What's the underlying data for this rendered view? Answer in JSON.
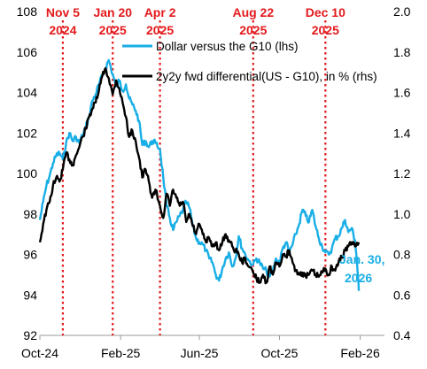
{
  "chart_data": {
    "type": "line",
    "title": "",
    "xlabel": "",
    "x_ticks": [
      "Oct-24",
      "Feb-25",
      "Jun-25",
      "Oct-25",
      "Feb-26"
    ],
    "y_left": {
      "ylim": [
        92,
        108
      ],
      "ticks": [
        "92",
        "94",
        "96",
        "98",
        "100",
        "102",
        "104",
        "106",
        "108"
      ]
    },
    "y_right": {
      "ylim": [
        0.4,
        2.0
      ],
      "ticks": [
        "0.4",
        "0.6",
        "0.8",
        "1.0",
        "1.2",
        "1.4",
        "1.6",
        "1.8",
        "2.0"
      ]
    },
    "x_range": [
      "2024-10-01",
      "2026-03-10"
    ],
    "grid": false,
    "legend_position": "top-center",
    "series": [
      {
        "name": "Dollar versus the G10 (lhs)",
        "axis": "left",
        "color": "#18aee6",
        "points": [
          [
            "2024-10-01",
            97.7
          ],
          [
            "2024-10-06",
            98.6
          ],
          [
            "2024-10-11",
            99.4
          ],
          [
            "2024-10-16",
            99.9
          ],
          [
            "2024-10-21",
            100.5
          ],
          [
            "2024-10-26",
            100.9
          ],
          [
            "2024-10-31",
            101.0
          ],
          [
            "2024-11-05",
            100.7
          ],
          [
            "2024-11-10",
            101.5
          ],
          [
            "2024-11-15",
            102.0
          ],
          [
            "2024-11-20",
            101.6
          ],
          [
            "2024-11-25",
            101.8
          ],
          [
            "2024-11-30",
            101.5
          ],
          [
            "2024-12-05",
            101.9
          ],
          [
            "2024-12-10",
            102.3
          ],
          [
            "2024-12-15",
            102.8
          ],
          [
            "2024-12-20",
            103.6
          ],
          [
            "2024-12-25",
            103.9
          ],
          [
            "2024-12-30",
            104.4
          ],
          [
            "2025-01-04",
            104.8
          ],
          [
            "2025-01-09",
            105.2
          ],
          [
            "2025-01-14",
            105.6
          ],
          [
            "2025-01-20",
            104.9
          ],
          [
            "2025-01-25",
            104.3
          ],
          [
            "2025-01-30",
            104.6
          ],
          [
            "2025-02-04",
            104.1
          ],
          [
            "2025-02-09",
            104.4
          ],
          [
            "2025-02-14",
            103.7
          ],
          [
            "2025-02-19",
            103.4
          ],
          [
            "2025-02-24",
            103.1
          ],
          [
            "2025-03-01",
            102.6
          ],
          [
            "2025-03-06",
            101.4
          ],
          [
            "2025-03-11",
            101.6
          ],
          [
            "2025-03-16",
            101.3
          ],
          [
            "2025-03-21",
            101.6
          ],
          [
            "2025-03-26",
            101.5
          ],
          [
            "2025-04-02",
            101.2
          ],
          [
            "2025-04-07",
            99.8
          ],
          [
            "2025-04-12",
            98.4
          ],
          [
            "2025-04-17",
            97.8
          ],
          [
            "2025-04-22",
            97.2
          ],
          [
            "2025-04-27",
            97.6
          ],
          [
            "2025-05-02",
            97.9
          ],
          [
            "2025-05-07",
            98.2
          ],
          [
            "2025-05-12",
            98.6
          ],
          [
            "2025-05-17",
            98.3
          ],
          [
            "2025-05-22",
            97.4
          ],
          [
            "2025-05-27",
            96.8
          ],
          [
            "2025-06-01",
            96.6
          ],
          [
            "2025-06-06",
            96.5
          ],
          [
            "2025-06-11",
            96.2
          ],
          [
            "2025-06-16",
            95.8
          ],
          [
            "2025-06-21",
            95.6
          ],
          [
            "2025-06-26",
            95.0
          ],
          [
            "2025-07-01",
            94.7
          ],
          [
            "2025-07-06",
            95.3
          ],
          [
            "2025-07-11",
            95.8
          ],
          [
            "2025-07-16",
            96.1
          ],
          [
            "2025-07-21",
            95.4
          ],
          [
            "2025-07-26",
            95.8
          ],
          [
            "2025-07-31",
            96.9
          ],
          [
            "2025-08-05",
            96.3
          ],
          [
            "2025-08-10",
            96.0
          ],
          [
            "2025-08-15",
            95.7
          ],
          [
            "2025-08-22",
            95.5
          ],
          [
            "2025-08-27",
            95.8
          ],
          [
            "2025-09-01",
            95.6
          ],
          [
            "2025-09-06",
            95.3
          ],
          [
            "2025-09-11",
            95.2
          ],
          [
            "2025-09-16",
            94.9
          ],
          [
            "2025-09-21",
            95.2
          ],
          [
            "2025-09-26",
            95.8
          ],
          [
            "2025-10-01",
            95.6
          ],
          [
            "2025-10-06",
            96.3
          ],
          [
            "2025-10-11",
            96.6
          ],
          [
            "2025-10-16",
            96.1
          ],
          [
            "2025-10-21",
            96.5
          ],
          [
            "2025-10-26",
            97.0
          ],
          [
            "2025-10-31",
            97.5
          ],
          [
            "2025-11-05",
            98.2
          ],
          [
            "2025-11-10",
            97.9
          ],
          [
            "2025-11-15",
            97.6
          ],
          [
            "2025-11-20",
            98.2
          ],
          [
            "2025-11-25",
            97.4
          ],
          [
            "2025-11-30",
            96.8
          ],
          [
            "2025-12-05",
            96.4
          ],
          [
            "2025-12-10",
            96.1
          ],
          [
            "2025-12-15",
            96.0
          ],
          [
            "2025-12-20",
            96.3
          ],
          [
            "2025-12-25",
            96.8
          ],
          [
            "2025-12-30",
            96.9
          ],
          [
            "2026-01-04",
            97.3
          ],
          [
            "2026-01-09",
            97.7
          ],
          [
            "2026-01-14",
            97.1
          ],
          [
            "2026-01-19",
            97.3
          ],
          [
            "2026-01-24",
            96.7
          ],
          [
            "2026-01-27",
            95.7
          ],
          [
            "2026-01-30",
            94.2
          ]
        ]
      },
      {
        "name": "2y2y fwd differential(US - G10), in % (rhs)",
        "axis": "right",
        "color": "#000000",
        "points": [
          [
            "2024-10-01",
            0.86
          ],
          [
            "2024-10-06",
            0.95
          ],
          [
            "2024-10-11",
            1.02
          ],
          [
            "2024-10-16",
            1.06
          ],
          [
            "2024-10-21",
            1.14
          ],
          [
            "2024-10-26",
            1.18
          ],
          [
            "2024-10-31",
            1.16
          ],
          [
            "2024-11-05",
            1.22
          ],
          [
            "2024-11-10",
            1.3
          ],
          [
            "2024-11-15",
            1.27
          ],
          [
            "2024-11-20",
            1.24
          ],
          [
            "2024-11-25",
            1.29
          ],
          [
            "2024-11-30",
            1.33
          ],
          [
            "2024-12-05",
            1.38
          ],
          [
            "2024-12-10",
            1.42
          ],
          [
            "2024-12-15",
            1.48
          ],
          [
            "2024-12-20",
            1.52
          ],
          [
            "2024-12-25",
            1.55
          ],
          [
            "2024-12-30",
            1.61
          ],
          [
            "2025-01-04",
            1.68
          ],
          [
            "2025-01-09",
            1.72
          ],
          [
            "2025-01-14",
            1.67
          ],
          [
            "2025-01-20",
            1.59
          ],
          [
            "2025-01-25",
            1.66
          ],
          [
            "2025-01-30",
            1.62
          ],
          [
            "2025-02-04",
            1.55
          ],
          [
            "2025-02-09",
            1.48
          ],
          [
            "2025-02-14",
            1.38
          ],
          [
            "2025-02-19",
            1.41
          ],
          [
            "2025-02-24",
            1.36
          ],
          [
            "2025-03-01",
            1.28
          ],
          [
            "2025-03-06",
            1.18
          ],
          [
            "2025-03-11",
            1.22
          ],
          [
            "2025-03-16",
            1.16
          ],
          [
            "2025-03-21",
            1.08
          ],
          [
            "2025-03-26",
            1.12
          ],
          [
            "2025-04-02",
            1.04
          ],
          [
            "2025-04-07",
            0.98
          ],
          [
            "2025-04-12",
            1.1
          ],
          [
            "2025-04-17",
            1.04
          ],
          [
            "2025-04-22",
            1.12
          ],
          [
            "2025-04-27",
            1.08
          ],
          [
            "2025-05-02",
            1.04
          ],
          [
            "2025-05-07",
            1.06
          ],
          [
            "2025-05-12",
            0.96
          ],
          [
            "2025-05-17",
            1.0
          ],
          [
            "2025-05-22",
            0.94
          ],
          [
            "2025-05-27",
            0.9
          ],
          [
            "2025-06-01",
            0.95
          ],
          [
            "2025-06-06",
            0.9
          ],
          [
            "2025-06-11",
            0.86
          ],
          [
            "2025-06-16",
            0.88
          ],
          [
            "2025-06-21",
            0.84
          ],
          [
            "2025-06-26",
            0.86
          ],
          [
            "2025-07-01",
            0.82
          ],
          [
            "2025-07-06",
            0.86
          ],
          [
            "2025-07-11",
            0.9
          ],
          [
            "2025-07-16",
            0.87
          ],
          [
            "2025-07-21",
            0.84
          ],
          [
            "2025-07-26",
            0.82
          ],
          [
            "2025-07-31",
            0.8
          ],
          [
            "2025-08-05",
            0.76
          ],
          [
            "2025-08-10",
            0.78
          ],
          [
            "2025-08-15",
            0.74
          ],
          [
            "2025-08-22",
            0.71
          ],
          [
            "2025-08-27",
            0.68
          ],
          [
            "2025-09-01",
            0.66
          ],
          [
            "2025-09-06",
            0.7
          ],
          [
            "2025-09-11",
            0.66
          ],
          [
            "2025-09-16",
            0.74
          ],
          [
            "2025-09-21",
            0.7
          ],
          [
            "2025-09-26",
            0.76
          ],
          [
            "2025-10-01",
            0.74
          ],
          [
            "2025-10-06",
            0.8
          ],
          [
            "2025-10-11",
            0.79
          ],
          [
            "2025-10-16",
            0.82
          ],
          [
            "2025-10-21",
            0.76
          ],
          [
            "2025-10-26",
            0.72
          ],
          [
            "2025-10-31",
            0.7
          ],
          [
            "2025-11-05",
            0.71
          ],
          [
            "2025-11-10",
            0.69
          ],
          [
            "2025-11-15",
            0.7
          ],
          [
            "2025-11-20",
            0.72
          ],
          [
            "2025-11-25",
            0.7
          ],
          [
            "2025-11-30",
            0.69
          ],
          [
            "2025-12-05",
            0.71
          ],
          [
            "2025-12-10",
            0.73
          ],
          [
            "2025-12-15",
            0.7
          ],
          [
            "2025-12-20",
            0.74
          ],
          [
            "2025-12-25",
            0.72
          ],
          [
            "2025-12-30",
            0.76
          ],
          [
            "2026-01-04",
            0.79
          ],
          [
            "2026-01-09",
            0.82
          ],
          [
            "2026-01-14",
            0.84
          ],
          [
            "2026-01-19",
            0.86
          ],
          [
            "2026-01-24",
            0.84
          ],
          [
            "2026-01-30",
            0.86
          ]
        ]
      }
    ],
    "events": [
      {
        "date": "2024-11-05",
        "line1": "Nov 5",
        "line2": "2024"
      },
      {
        "date": "2025-01-20",
        "line1": "Jan 20",
        "line2": "2025"
      },
      {
        "date": "2025-04-02",
        "line1": "Apr 2",
        "line2": "2025"
      },
      {
        "date": "2025-08-22",
        "line1": "Aug 22",
        "line2": "2025"
      },
      {
        "date": "2025-12-10",
        "line1": "Dec 10",
        "line2": "2025"
      }
    ],
    "annotation": {
      "line1": "Jan. 30,",
      "line2": "2026"
    }
  },
  "colors": {
    "dollar": "#18aee6",
    "differential": "#000000",
    "event": "#e3191c"
  }
}
